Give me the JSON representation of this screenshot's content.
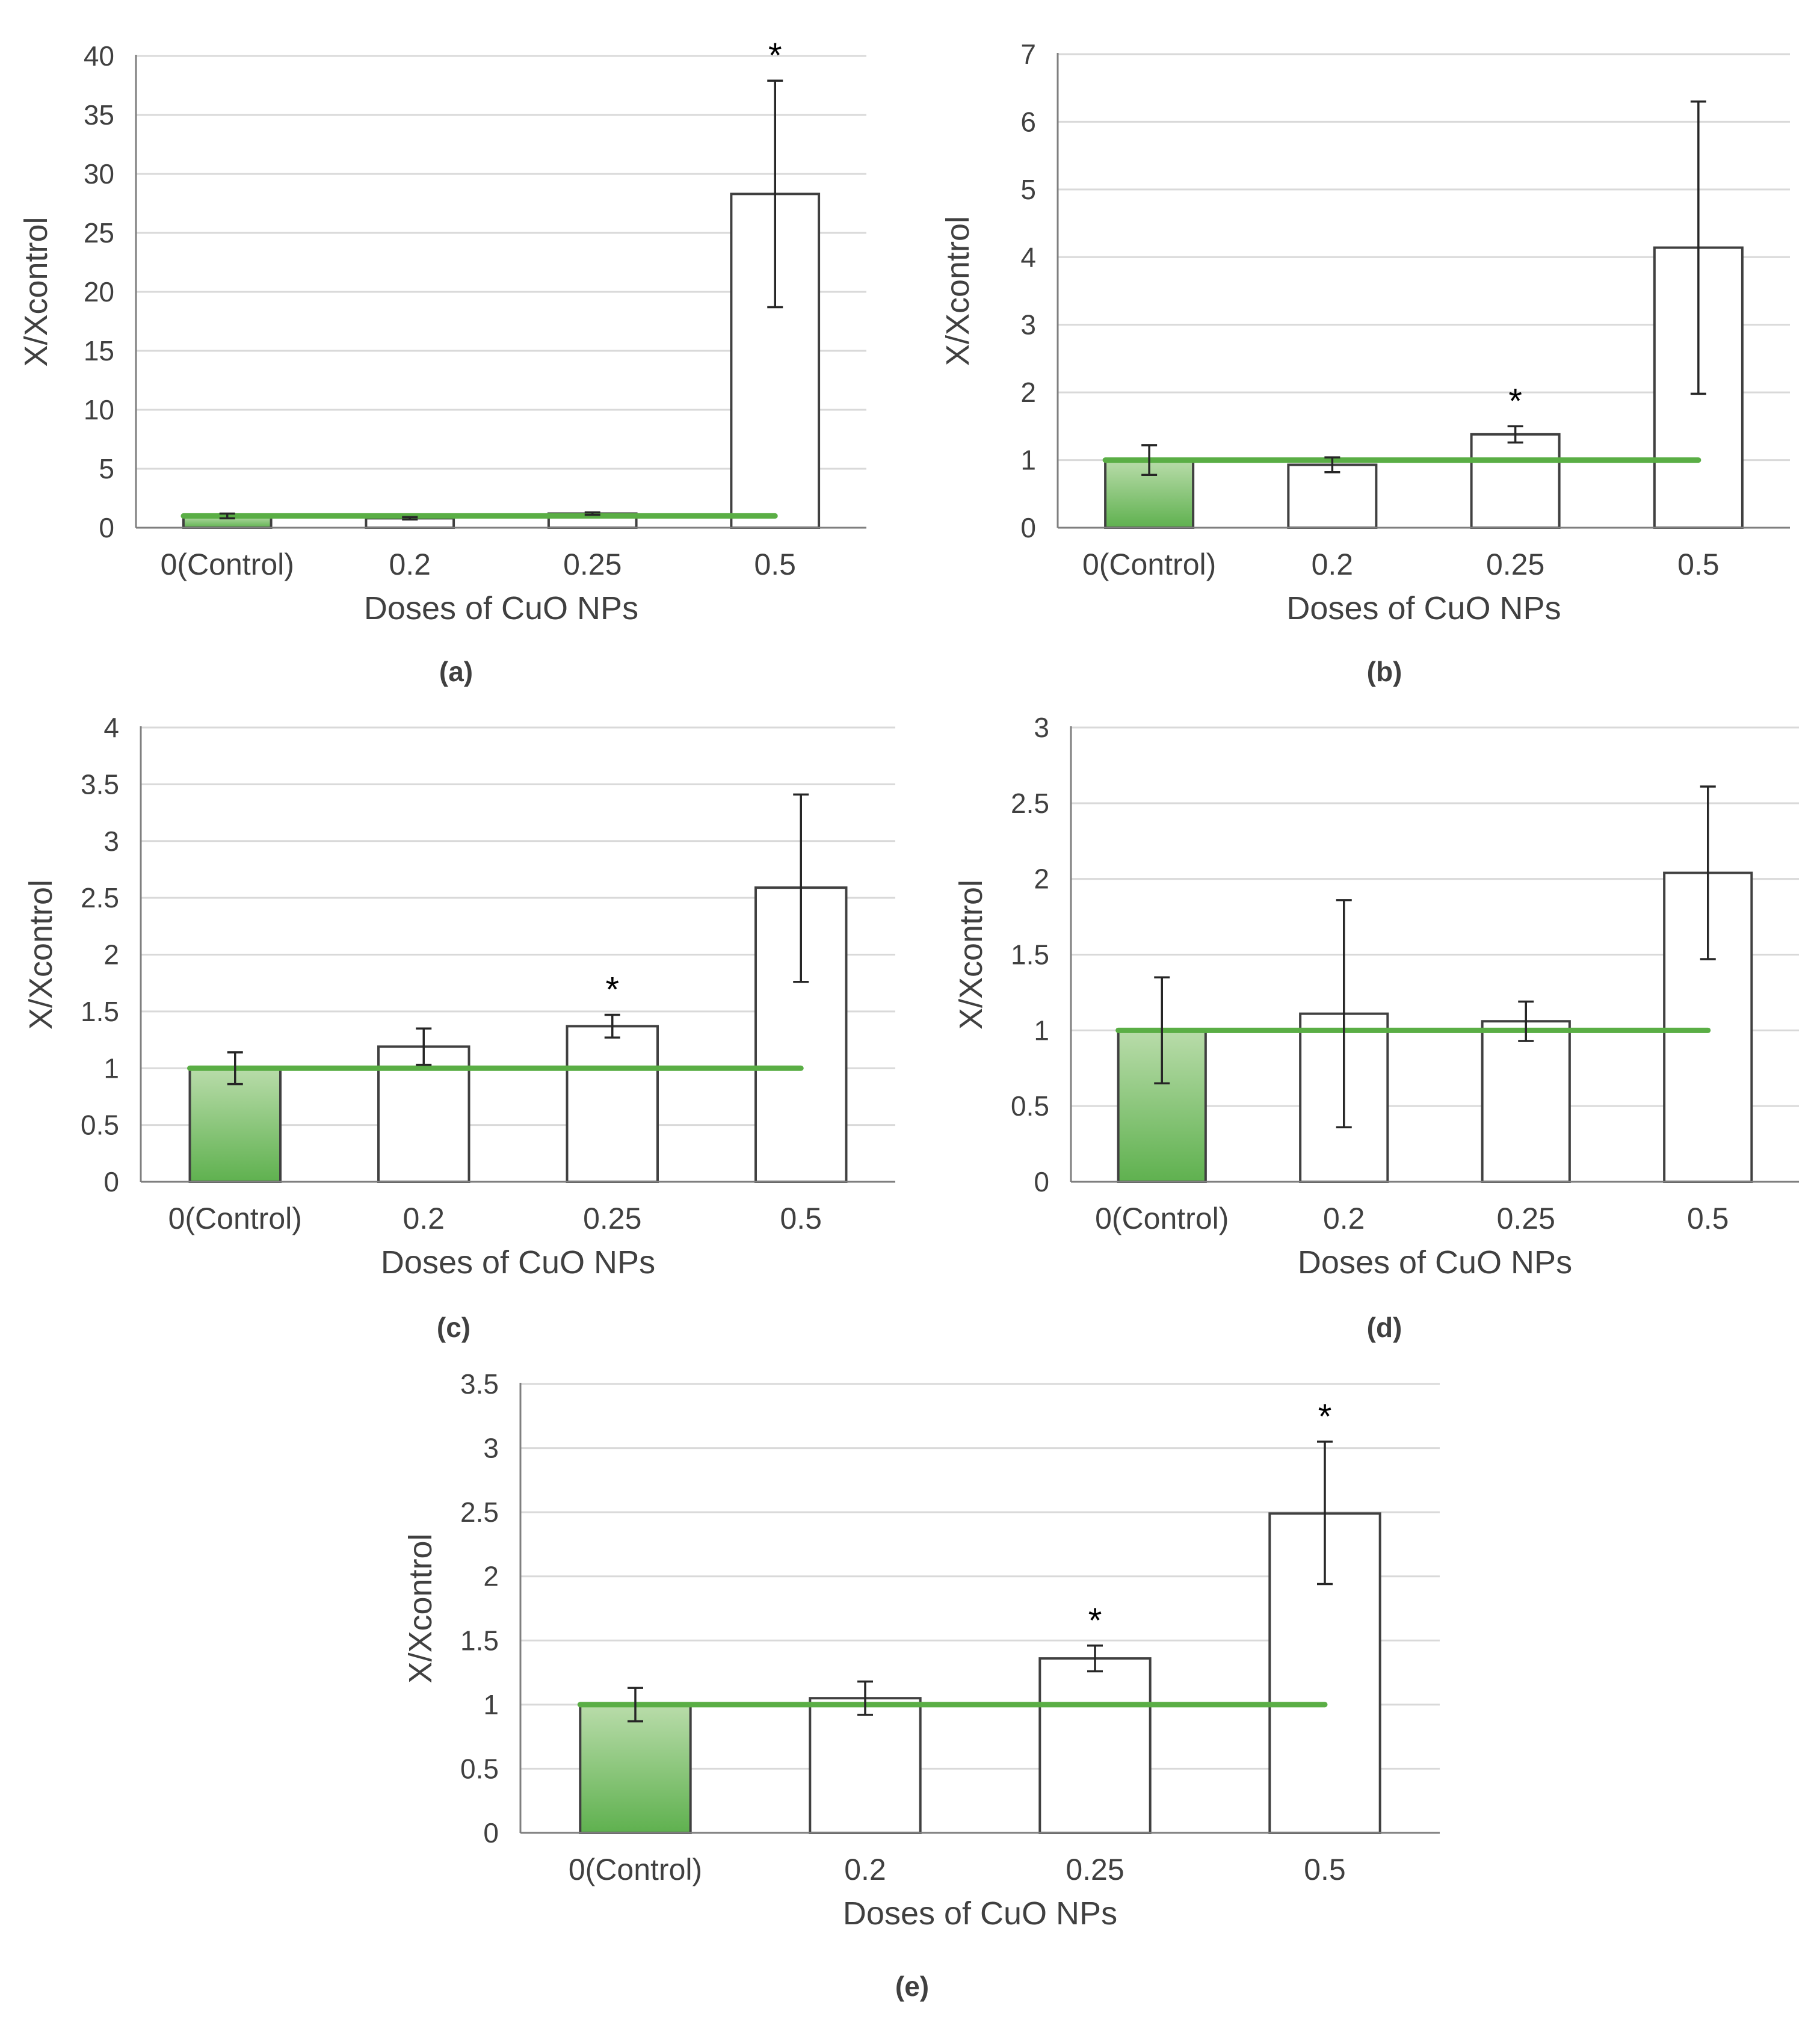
{
  "figure": {
    "colors": {
      "control_bar_top": "#b9dcaa",
      "control_bar_bottom": "#5fb14f",
      "reference_line": "#5aae45",
      "other_bar_fill": "#ffffff",
      "bar_stroke": "#404040",
      "gridline": "#d9d9d9",
      "axis": "#7f7f7f"
    }
  },
  "chart_data": [
    {
      "id": "a",
      "caption": "(a)",
      "type": "bar",
      "categories": [
        "0(Control)",
        "0.2",
        "0.25",
        "0.5"
      ],
      "values": [
        1,
        0.8,
        1.2,
        28.3
      ],
      "error_low": [
        0.8,
        0.7,
        1.1,
        18.7
      ],
      "error_high": [
        1.2,
        0.9,
        1.3,
        37.9
      ],
      "significance": [
        "",
        "",
        "",
        "*"
      ],
      "reference_line": 1,
      "xlabel": "Doses of CuO NPs",
      "ylabel": "X/Xcontrol",
      "ylim": [
        0,
        40
      ],
      "yticks": [
        0,
        5,
        10,
        15,
        20,
        25,
        30,
        35,
        40
      ],
      "ytick_labels": [
        "0",
        "5",
        "10",
        "15",
        "20",
        "25",
        "30",
        "35",
        "40"
      ]
    },
    {
      "id": "b",
      "caption": "(b)",
      "type": "bar",
      "categories": [
        "0(Control)",
        "0.2",
        "0.25",
        "0.5"
      ],
      "values": [
        1,
        0.93,
        1.38,
        4.14
      ],
      "error_low": [
        0.78,
        0.82,
        1.26,
        1.98
      ],
      "error_high": [
        1.22,
        1.04,
        1.5,
        6.3
      ],
      "significance": [
        "",
        "",
        "*",
        ""
      ],
      "reference_line": 1,
      "xlabel": "Doses of CuO NPs",
      "ylabel": "X/Xcontrol",
      "ylim": [
        0,
        7
      ],
      "yticks": [
        0,
        1,
        2,
        3,
        4,
        5,
        6,
        7
      ],
      "ytick_labels": [
        "0",
        "1",
        "2",
        "3",
        "4",
        "5",
        "6",
        "7"
      ]
    },
    {
      "id": "c",
      "caption": "(c)",
      "type": "bar",
      "categories": [
        "0(Control)",
        "0.2",
        "0.25",
        "0.5"
      ],
      "values": [
        1,
        1.19,
        1.37,
        2.59
      ],
      "error_low": [
        0.86,
        1.03,
        1.27,
        1.76
      ],
      "error_high": [
        1.14,
        1.35,
        1.47,
        3.41
      ],
      "significance": [
        "",
        "",
        "*",
        ""
      ],
      "reference_line": 1,
      "xlabel": "Doses of CuO NPs",
      "ylabel": "X/Xcontrol",
      "ylim": [
        0,
        4
      ],
      "yticks": [
        0,
        0.5,
        1,
        1.5,
        2,
        2.5,
        3,
        3.5,
        4
      ],
      "ytick_labels": [
        "0",
        "0.5",
        "1",
        "1.5",
        "2",
        "2.5",
        "3",
        "3.5",
        "4"
      ]
    },
    {
      "id": "d",
      "caption": "(d)",
      "type": "bar",
      "categories": [
        "0(Control)",
        "0.2",
        "0.25",
        "0.5"
      ],
      "values": [
        1,
        1.11,
        1.06,
        2.04
      ],
      "error_low": [
        0.65,
        0.36,
        0.93,
        1.47
      ],
      "error_high": [
        1.35,
        1.86,
        1.19,
        2.61
      ],
      "significance": [
        "",
        "",
        "",
        ""
      ],
      "reference_line": 1,
      "xlabel": "Doses of CuO NPs",
      "ylabel": "X/Xcontrol",
      "ylim": [
        0,
        3
      ],
      "yticks": [
        0,
        0.5,
        1,
        1.5,
        2,
        2.5,
        3
      ],
      "ytick_labels": [
        "0",
        "0.5",
        "1",
        "1.5",
        "2",
        "2.5",
        "3"
      ]
    },
    {
      "id": "e",
      "caption": "(e)",
      "type": "bar",
      "categories": [
        "0(Control)",
        "0.2",
        "0.25",
        "0.5"
      ],
      "values": [
        1,
        1.05,
        1.36,
        2.49
      ],
      "error_low": [
        0.87,
        0.92,
        1.26,
        1.94
      ],
      "error_high": [
        1.13,
        1.18,
        1.46,
        3.05
      ],
      "significance": [
        "",
        "",
        "*",
        "*"
      ],
      "reference_line": 1,
      "xlabel": "Doses of CuO NPs",
      "ylabel": "X/Xcontrol",
      "ylim": [
        0,
        3.5
      ],
      "yticks": [
        0,
        0.5,
        1,
        1.5,
        2,
        2.5,
        3,
        3.5
      ],
      "ytick_labels": [
        "0",
        "0.5",
        "1",
        "1.5",
        "2",
        "2.5",
        "3",
        "3.5"
      ]
    }
  ]
}
